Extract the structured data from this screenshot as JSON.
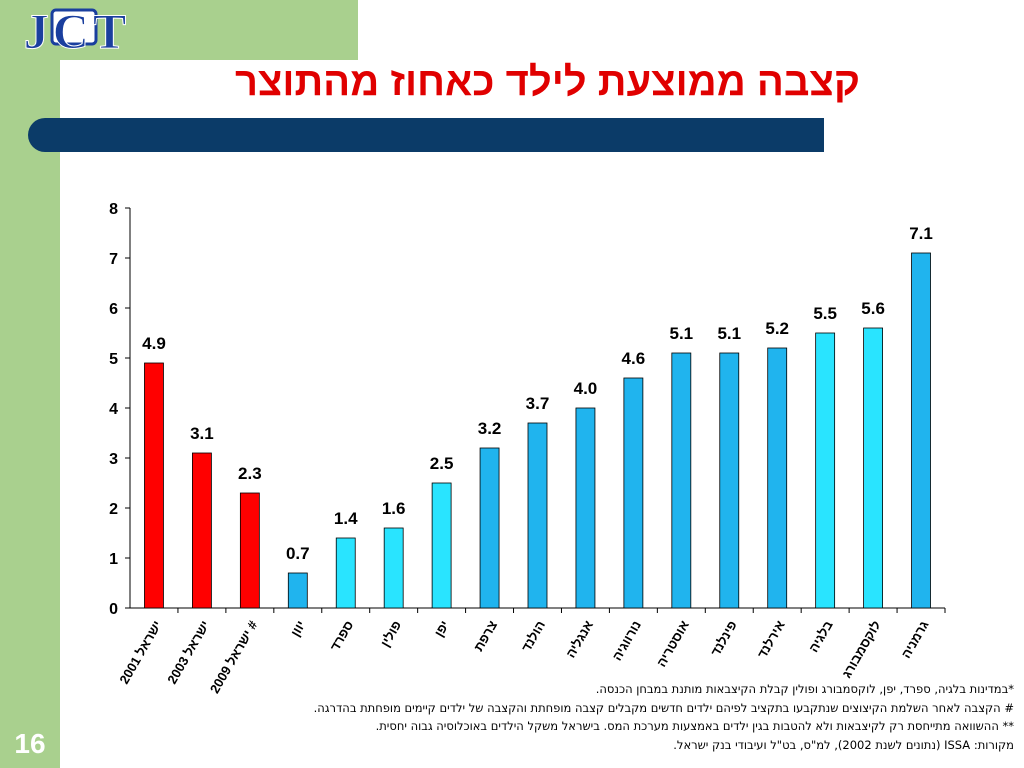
{
  "logo_text": "JCT",
  "title": "קצבה ממוצעת לילד כאחוז מהתוצר",
  "slide_number": "16",
  "colors": {
    "frame_green": "#a9d08e",
    "title_red": "#e00000",
    "bar_dark_blue": "#0b3b68",
    "israel_red": "#ff0000",
    "blue": "#20b4ee",
    "cyan": "#29e4ff",
    "logo_blue": "#1a3f9e"
  },
  "chart_data": {
    "type": "bar",
    "categories": [
      "ישראל 2001",
      "ישראל 2003",
      "ישראל 2009 #",
      "יוון",
      "ספרד",
      "פולין",
      "יפן",
      "צרפת",
      "הולנד",
      "אנגליה",
      "נורווגיה",
      "אוסטריה",
      "פינלנד",
      "אירלנד",
      "בלגיה",
      "לוקסמבורג",
      "גרמניה"
    ],
    "values": [
      4.9,
      3.1,
      2.3,
      0.7,
      1.4,
      1.6,
      2.5,
      3.2,
      3.7,
      4.0,
      4.6,
      5.1,
      5.1,
      5.2,
      5.5,
      5.6,
      7.1
    ],
    "value_labels": [
      "4.9",
      "3.1",
      "2.3",
      "0.7",
      "1.4",
      "1.6",
      "2.5",
      "3.2",
      "3.7",
      "4.0",
      "4.6",
      "5.1",
      "5.1",
      "5.2",
      "5.5",
      "5.6",
      "7.1"
    ],
    "bar_colors": [
      "#ff0000",
      "#ff0000",
      "#ff0000",
      "#20b4ee",
      "#29e4ff",
      "#29e4ff",
      "#29e4ff",
      "#20b4ee",
      "#20b4ee",
      "#20b4ee",
      "#20b4ee",
      "#20b4ee",
      "#20b4ee",
      "#20b4ee",
      "#29e4ff",
      "#29e4ff",
      "#20b4ee"
    ],
    "ylim": [
      0,
      8
    ],
    "yticks": [
      "0",
      "1",
      "2",
      "3",
      "4",
      "5",
      "6",
      "7",
      "8"
    ],
    "grid": false,
    "legend": "none"
  },
  "footnotes": [
    "*במדינות בלגיה, ספרד, יפן, לוקסמבורג ופולין קבלת הקיצבאות מותנת במבחן הכנסה.",
    "# הקצבה לאחר השלמת הקיצוצים שנתקבעו בתקציב לפיהם ילדים חדשים מקבלים קצבה מופחתת והקצבה של ילדים קיימים מופחתת בהדרגה.",
    "** ההשוואה מתייחסת רק לקיצבאות ולא להטבות בגין ילדים באמצעות מערכת המס. בישראל משקל הילדים באוכלוסיה גבוה יחסית.",
    "מקורות: ISSA (נתונים לשנת 2002), למ\"ס, בט\"ל ועיבודי בנק ישראל."
  ]
}
